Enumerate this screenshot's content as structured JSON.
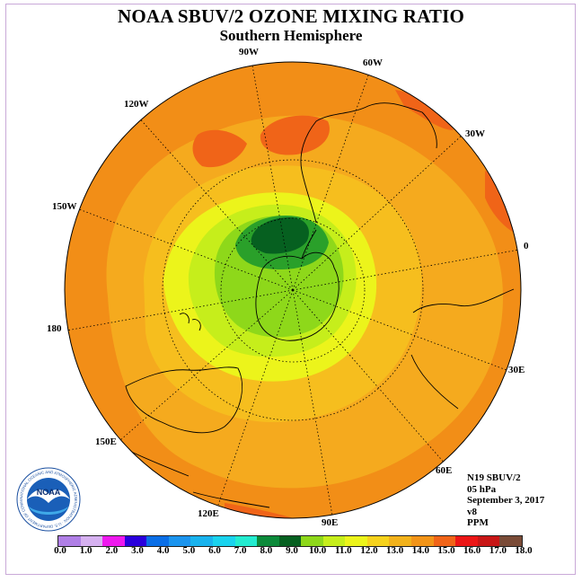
{
  "title": "NOAA SBUV/2 OZONE MIXING RATIO",
  "subtitle": "Southern Hemisphere",
  "longitude_labels": {
    "w90": "90W",
    "w60": "60W",
    "w120": "120W",
    "w30": "30W",
    "w150": "150W",
    "zero": "0",
    "deg180": "180",
    "e30": "30E",
    "e150": "150E",
    "e60": "60E",
    "e120": "120E",
    "e90": "90E"
  },
  "info": {
    "satellite": "N19 SBUV/2",
    "pressure": "05 hPa",
    "date": "September 3, 2017",
    "version": "v8",
    "units": "PPM"
  },
  "logo": {
    "text": "NOAA",
    "ring_text": "NATIONAL OCEANIC AND ATMOSPHERIC ADMINISTRATION · U.S. DEPARTMENT OF COMMERCE"
  },
  "colorbar": {
    "colors": [
      "#b07fe6",
      "#d6b1f0",
      "#ee19ee",
      "#2a00dc",
      "#0a6ee6",
      "#1b94ee",
      "#19b3ee",
      "#1ad3ee",
      "#23ecd0",
      "#0c8a3a",
      "#066020",
      "#8ed81a",
      "#c6ee1b",
      "#ecf41b",
      "#f6d21c",
      "#f2b21b",
      "#f29418",
      "#f06418",
      "#ec1616",
      "#c81616",
      "#7a4b37"
    ],
    "tick_labels": [
      "0.0",
      "1.0",
      "2.0",
      "3.0",
      "4.0",
      "5.0",
      "6.0",
      "7.0",
      "8.0",
      "9.0",
      "10.0",
      "11.0",
      "12.0",
      "13.0",
      "14.0",
      "15.0",
      "16.0",
      "17.0",
      "18.0"
    ]
  }
}
